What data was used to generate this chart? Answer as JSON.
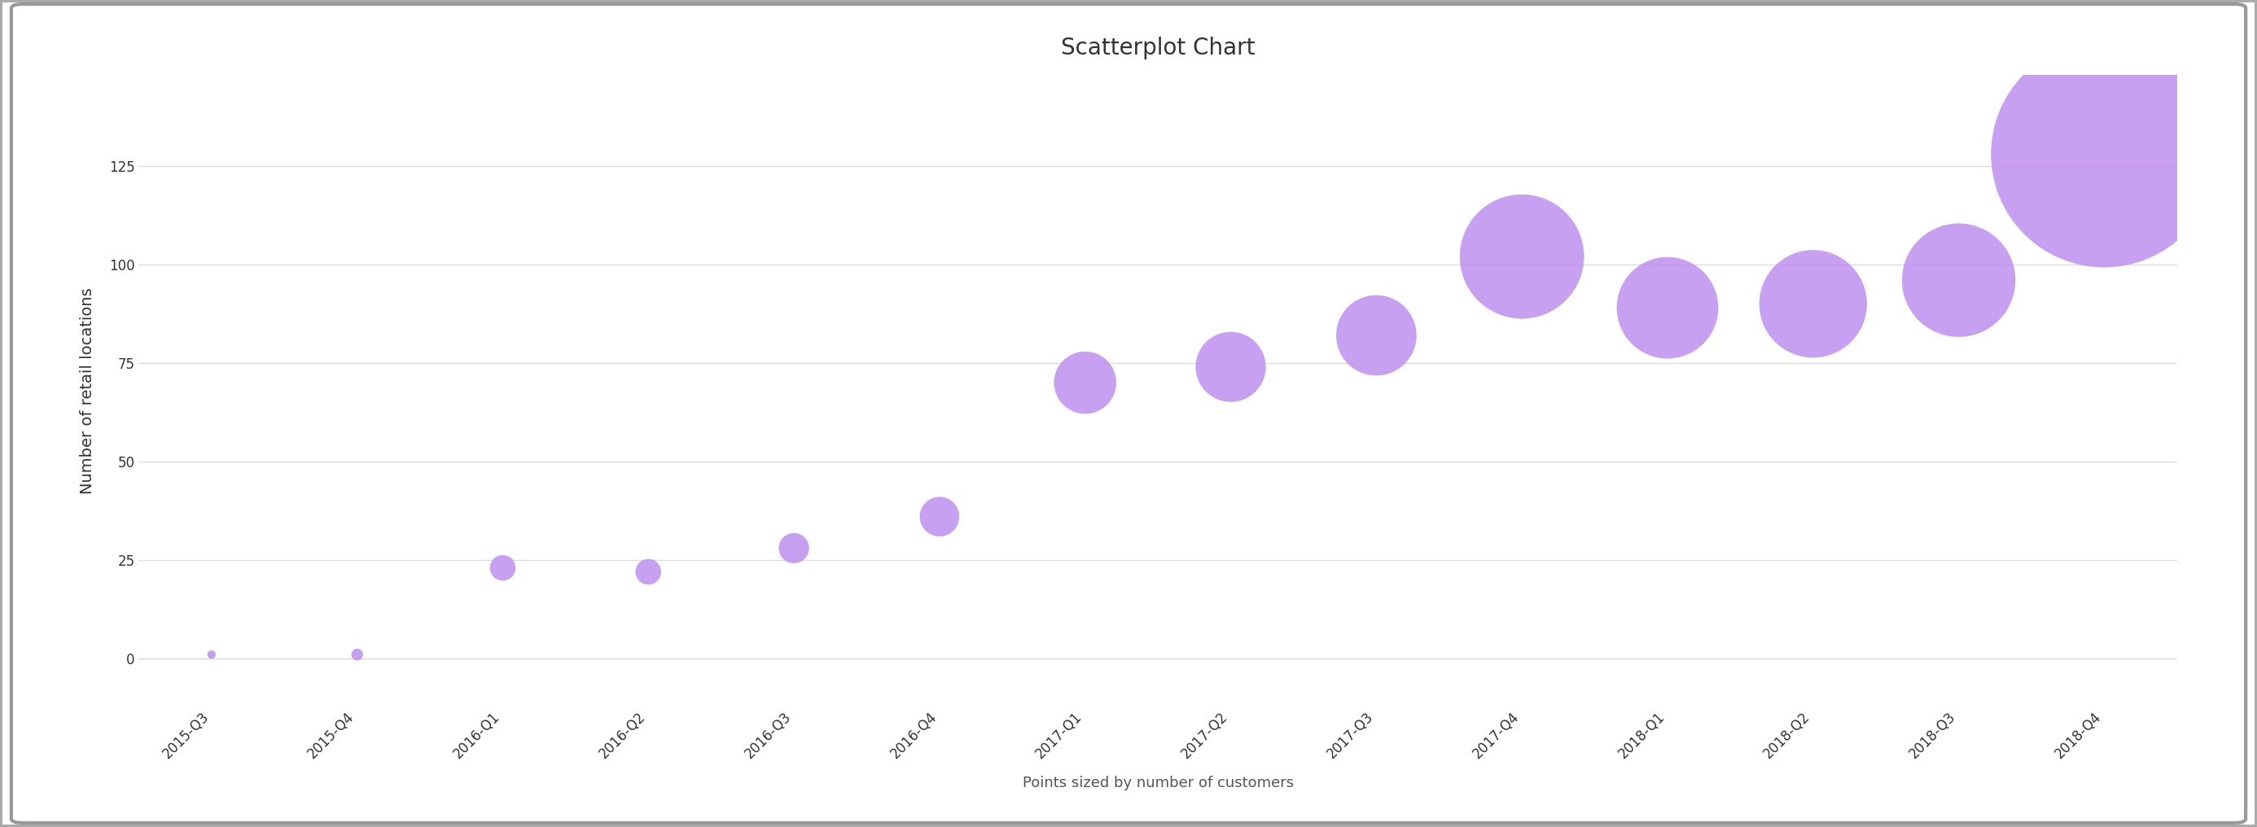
{
  "title": "Scatterplot Chart",
  "xlabel": "Points sized by number of customers",
  "ylabel": "Number of retail locations",
  "categories": [
    "2015-Q3",
    "2015-Q4",
    "2016-Q1",
    "2016-Q2",
    "2016-Q3",
    "2016-Q4",
    "2017-Q1",
    "2017-Q2",
    "2017-Q3",
    "2017-Q4",
    "2018-Q1",
    "2018-Q2",
    "2018-Q3",
    "2018-Q4"
  ],
  "y_values": [
    1,
    1,
    23,
    22,
    28,
    36,
    70,
    74,
    82,
    102,
    89,
    90,
    96,
    128
  ],
  "sizes": [
    50,
    100,
    500,
    500,
    700,
    1200,
    3000,
    3800,
    5000,
    12000,
    8000,
    9000,
    10000,
    40000
  ],
  "point_color": "#bf8fef",
  "point_edge_color": "#bf8fef",
  "background_color": "#ffffff",
  "frame_color": "#aaaaaa",
  "grid_color": "#dddddd",
  "title_fontsize": 20,
  "ylabel_fontsize": 14,
  "xlabel_fontsize": 13,
  "tick_fontsize": 12,
  "ylim": [
    -12,
    148
  ],
  "yticks": [
    0,
    25,
    50,
    75,
    100,
    125
  ]
}
